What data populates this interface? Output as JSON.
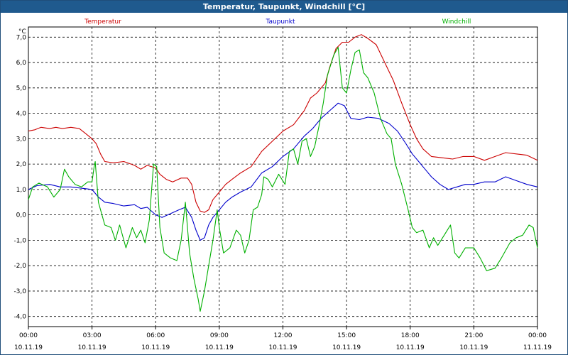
{
  "window": {
    "title": "Temperatur, Taupunkt, Windchill [°C]"
  },
  "colors": {
    "titlebar": "#1f5a8e",
    "grid": "#000000"
  },
  "chart_data": {
    "type": "line",
    "title": "Temperatur, Taupunkt, Windchill [°C]",
    "ylabel": "°C",
    "xlabel": "",
    "ylim": [
      -4.4,
      7.4
    ],
    "xlim": [
      0,
      24
    ],
    "grid": true,
    "legend_placement": "top",
    "yticks": [
      {
        "value": 7,
        "label": "7,0"
      },
      {
        "value": 6,
        "label": "6,0"
      },
      {
        "value": 5,
        "label": "5,0"
      },
      {
        "value": 4,
        "label": "4,0"
      },
      {
        "value": 3,
        "label": "3,0"
      },
      {
        "value": 2,
        "label": "2,0"
      },
      {
        "value": 1,
        "label": "1,0"
      },
      {
        "value": 0,
        "label": "0,0"
      },
      {
        "value": -1,
        "label": "-1,0"
      },
      {
        "value": -2,
        "label": "-2,0"
      },
      {
        "value": -3,
        "label": "-3,0"
      },
      {
        "value": -4,
        "label": "-4,0"
      }
    ],
    "xticks": [
      {
        "value": 0,
        "time": "00:00",
        "date": "10.11.19"
      },
      {
        "value": 3,
        "time": "03:00",
        "date": "10.11.19"
      },
      {
        "value": 6,
        "time": "06:00",
        "date": "10.11.19"
      },
      {
        "value": 9,
        "time": "09:00",
        "date": "10.11.19"
      },
      {
        "value": 12,
        "time": "12:00",
        "date": "10.11.19"
      },
      {
        "value": 15,
        "time": "15:00",
        "date": "10.11.19"
      },
      {
        "value": 18,
        "time": "18:00",
        "date": "10.11.19"
      },
      {
        "value": 21,
        "time": "21:00",
        "date": "10.11.19"
      },
      {
        "value": 24,
        "time": "00:00",
        "date": "11.11.19"
      }
    ],
    "series": [
      {
        "name": "Temperatur",
        "color": "#cc0000",
        "points": [
          [
            0,
            3.3
          ],
          [
            0.3,
            3.35
          ],
          [
            0.6,
            3.45
          ],
          [
            1,
            3.4
          ],
          [
            1.3,
            3.45
          ],
          [
            1.6,
            3.4
          ],
          [
            2,
            3.45
          ],
          [
            2.4,
            3.4
          ],
          [
            2.7,
            3.2
          ],
          [
            3,
            3.0
          ],
          [
            3.2,
            2.8
          ],
          [
            3.4,
            2.4
          ],
          [
            3.6,
            2.1
          ],
          [
            4,
            2.05
          ],
          [
            4.5,
            2.1
          ],
          [
            5,
            1.95
          ],
          [
            5.3,
            1.8
          ],
          [
            5.6,
            1.95
          ],
          [
            6,
            1.85
          ],
          [
            6.2,
            1.6
          ],
          [
            6.5,
            1.4
          ],
          [
            6.8,
            1.3
          ],
          [
            7.2,
            1.45
          ],
          [
            7.5,
            1.45
          ],
          [
            7.7,
            1.2
          ],
          [
            7.9,
            0.5
          ],
          [
            8.1,
            0.15
          ],
          [
            8.3,
            0.1
          ],
          [
            8.5,
            0.2
          ],
          [
            8.7,
            0.6
          ],
          [
            9.0,
            0.9
          ],
          [
            9.3,
            1.2
          ],
          [
            9.6,
            1.4
          ],
          [
            10.0,
            1.65
          ],
          [
            10.5,
            1.9
          ],
          [
            11.0,
            2.5
          ],
          [
            11.5,
            2.9
          ],
          [
            12.0,
            3.3
          ],
          [
            12.5,
            3.55
          ],
          [
            13.0,
            4.1
          ],
          [
            13.3,
            4.6
          ],
          [
            13.6,
            4.8
          ],
          [
            14.0,
            5.2
          ],
          [
            14.2,
            5.8
          ],
          [
            14.5,
            6.55
          ],
          [
            14.8,
            6.8
          ],
          [
            15.1,
            6.8
          ],
          [
            15.4,
            7.0
          ],
          [
            15.7,
            7.1
          ],
          [
            16.0,
            6.95
          ],
          [
            16.4,
            6.7
          ],
          [
            16.8,
            6.0
          ],
          [
            17.2,
            5.3
          ],
          [
            17.6,
            4.4
          ],
          [
            18.0,
            3.55
          ],
          [
            18.3,
            3.0
          ],
          [
            18.6,
            2.6
          ],
          [
            19.0,
            2.3
          ],
          [
            19.5,
            2.25
          ],
          [
            20.0,
            2.2
          ],
          [
            20.5,
            2.3
          ],
          [
            21.0,
            2.3
          ],
          [
            21.5,
            2.15
          ],
          [
            22.0,
            2.3
          ],
          [
            22.5,
            2.45
          ],
          [
            23.0,
            2.4
          ],
          [
            23.5,
            2.35
          ],
          [
            24,
            2.15
          ]
        ]
      },
      {
        "name": "Taupunkt",
        "color": "#0000cc",
        "points": [
          [
            0,
            1.0
          ],
          [
            0.4,
            1.15
          ],
          [
            1,
            1.2
          ],
          [
            1.5,
            1.1
          ],
          [
            2,
            1.1
          ],
          [
            2.5,
            1.05
          ],
          [
            3,
            1.0
          ],
          [
            3.3,
            0.7
          ],
          [
            3.6,
            0.5
          ],
          [
            4,
            0.45
          ],
          [
            4.5,
            0.35
          ],
          [
            5,
            0.4
          ],
          [
            5.3,
            0.25
          ],
          [
            5.6,
            0.3
          ],
          [
            6,
            0.0
          ],
          [
            6.3,
            -0.1
          ],
          [
            6.7,
            0.05
          ],
          [
            7.1,
            0.2
          ],
          [
            7.4,
            0.3
          ],
          [
            7.7,
            -0.1
          ],
          [
            7.9,
            -0.6
          ],
          [
            8.1,
            -1.0
          ],
          [
            8.3,
            -0.9
          ],
          [
            8.5,
            -0.4
          ],
          [
            8.7,
            -0.1
          ],
          [
            9,
            0.2
          ],
          [
            9.3,
            0.5
          ],
          [
            9.6,
            0.7
          ],
          [
            10,
            0.9
          ],
          [
            10.5,
            1.1
          ],
          [
            11,
            1.65
          ],
          [
            11.5,
            1.9
          ],
          [
            12,
            2.3
          ],
          [
            12.5,
            2.6
          ],
          [
            13,
            3.1
          ],
          [
            13.4,
            3.4
          ],
          [
            13.8,
            3.8
          ],
          [
            14.2,
            4.1
          ],
          [
            14.6,
            4.4
          ],
          [
            14.9,
            4.3
          ],
          [
            15.2,
            3.8
          ],
          [
            15.6,
            3.75
          ],
          [
            16,
            3.85
          ],
          [
            16.5,
            3.8
          ],
          [
            17,
            3.6
          ],
          [
            17.4,
            3.3
          ],
          [
            17.8,
            2.8
          ],
          [
            18.1,
            2.4
          ],
          [
            18.4,
            2.1
          ],
          [
            18.7,
            1.8
          ],
          [
            19.0,
            1.5
          ],
          [
            19.4,
            1.2
          ],
          [
            19.8,
            1.0
          ],
          [
            20.2,
            1.1
          ],
          [
            20.6,
            1.2
          ],
          [
            21,
            1.2
          ],
          [
            21.5,
            1.3
          ],
          [
            22,
            1.3
          ],
          [
            22.5,
            1.5
          ],
          [
            23,
            1.35
          ],
          [
            23.5,
            1.2
          ],
          [
            24,
            1.1
          ]
        ]
      },
      {
        "name": "Windchill",
        "color": "#00b000",
        "points": [
          [
            0,
            0.6
          ],
          [
            0.2,
            1.1
          ],
          [
            0.5,
            1.25
          ],
          [
            0.9,
            1.1
          ],
          [
            1.2,
            0.7
          ],
          [
            1.5,
            1.0
          ],
          [
            1.7,
            1.8
          ],
          [
            1.9,
            1.5
          ],
          [
            2.2,
            1.2
          ],
          [
            2.5,
            1.1
          ],
          [
            2.8,
            1.3
          ],
          [
            3.0,
            1.3
          ],
          [
            3.1,
            1.9
          ],
          [
            3.15,
            2.1
          ],
          [
            3.3,
            0.5
          ],
          [
            3.6,
            -0.4
          ],
          [
            3.9,
            -0.5
          ],
          [
            4.1,
            -1.0
          ],
          [
            4.3,
            -0.4
          ],
          [
            4.6,
            -1.3
          ],
          [
            4.9,
            -0.5
          ],
          [
            5.1,
            -0.9
          ],
          [
            5.3,
            -0.6
          ],
          [
            5.5,
            -1.1
          ],
          [
            5.7,
            -0.2
          ],
          [
            5.9,
            2.0
          ],
          [
            6.05,
            1.9
          ],
          [
            6.2,
            -0.5
          ],
          [
            6.4,
            -1.5
          ],
          [
            6.7,
            -1.7
          ],
          [
            7.0,
            -1.8
          ],
          [
            7.2,
            -1.0
          ],
          [
            7.4,
            0.5
          ],
          [
            7.6,
            -1.5
          ],
          [
            7.8,
            -2.5
          ],
          [
            8.0,
            -3.3
          ],
          [
            8.1,
            -3.8
          ],
          [
            8.3,
            -3.0
          ],
          [
            8.5,
            -2.0
          ],
          [
            8.7,
            -1.0
          ],
          [
            8.9,
            0.2
          ],
          [
            9.0,
            -0.5
          ],
          [
            9.2,
            -1.5
          ],
          [
            9.5,
            -1.3
          ],
          [
            9.8,
            -0.6
          ],
          [
            10.0,
            -0.8
          ],
          [
            10.2,
            -1.5
          ],
          [
            10.4,
            -1.0
          ],
          [
            10.6,
            0.2
          ],
          [
            10.8,
            0.3
          ],
          [
            11.0,
            0.8
          ],
          [
            11.1,
            1.5
          ],
          [
            11.3,
            1.4
          ],
          [
            11.5,
            1.1
          ],
          [
            11.8,
            1.6
          ],
          [
            12.1,
            1.2
          ],
          [
            12.3,
            2.5
          ],
          [
            12.5,
            2.6
          ],
          [
            12.7,
            2.0
          ],
          [
            12.9,
            2.9
          ],
          [
            13.1,
            3.0
          ],
          [
            13.3,
            2.3
          ],
          [
            13.5,
            2.7
          ],
          [
            13.7,
            3.5
          ],
          [
            13.9,
            4.4
          ],
          [
            14.1,
            5.5
          ],
          [
            14.4,
            6.3
          ],
          [
            14.6,
            6.6
          ],
          [
            14.8,
            5.0
          ],
          [
            15.0,
            4.8
          ],
          [
            15.2,
            5.7
          ],
          [
            15.4,
            6.4
          ],
          [
            15.6,
            6.5
          ],
          [
            15.8,
            5.6
          ],
          [
            16.0,
            5.4
          ],
          [
            16.3,
            4.8
          ],
          [
            16.6,
            3.8
          ],
          [
            16.9,
            3.2
          ],
          [
            17.1,
            3.0
          ],
          [
            17.3,
            2.0
          ],
          [
            17.6,
            1.2
          ],
          [
            17.9,
            0.2
          ],
          [
            18.1,
            -0.5
          ],
          [
            18.3,
            -0.7
          ],
          [
            18.6,
            -0.6
          ],
          [
            18.9,
            -1.3
          ],
          [
            19.1,
            -0.9
          ],
          [
            19.3,
            -1.2
          ],
          [
            19.6,
            -0.8
          ],
          [
            19.9,
            -0.4
          ],
          [
            20.1,
            -1.5
          ],
          [
            20.3,
            -1.7
          ],
          [
            20.6,
            -1.3
          ],
          [
            21.0,
            -1.3
          ],
          [
            21.3,
            -1.7
          ],
          [
            21.6,
            -2.2
          ],
          [
            22.0,
            -2.1
          ],
          [
            22.3,
            -1.7
          ],
          [
            22.7,
            -1.1
          ],
          [
            23.0,
            -0.9
          ],
          [
            23.3,
            -0.8
          ],
          [
            23.6,
            -0.4
          ],
          [
            23.8,
            -0.5
          ],
          [
            24,
            -1.3
          ]
        ]
      }
    ]
  }
}
